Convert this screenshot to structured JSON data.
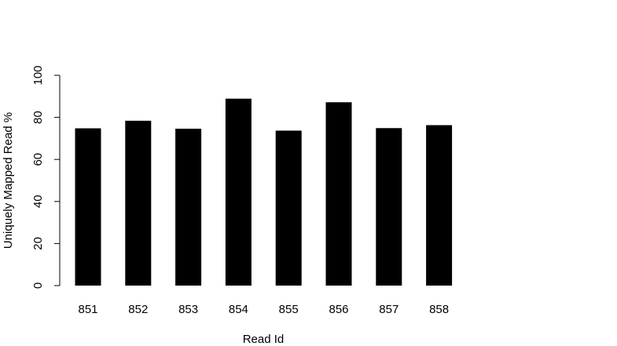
{
  "chart_data": {
    "type": "bar",
    "title": "",
    "xlabel": "Read Id",
    "ylabel": "Uniquely Mapped Read %",
    "categories": [
      "851",
      "852",
      "853",
      "854",
      "855",
      "856",
      "857",
      "858"
    ],
    "values": [
      74.8,
      78.4,
      74.6,
      88.9,
      73.7,
      87.2,
      74.9,
      76.3
    ],
    "ylim": [
      0,
      100
    ],
    "yticks": [
      "0",
      "20",
      "40",
      "60",
      "80",
      "100"
    ],
    "grid": false,
    "bar_color": "#000000"
  }
}
